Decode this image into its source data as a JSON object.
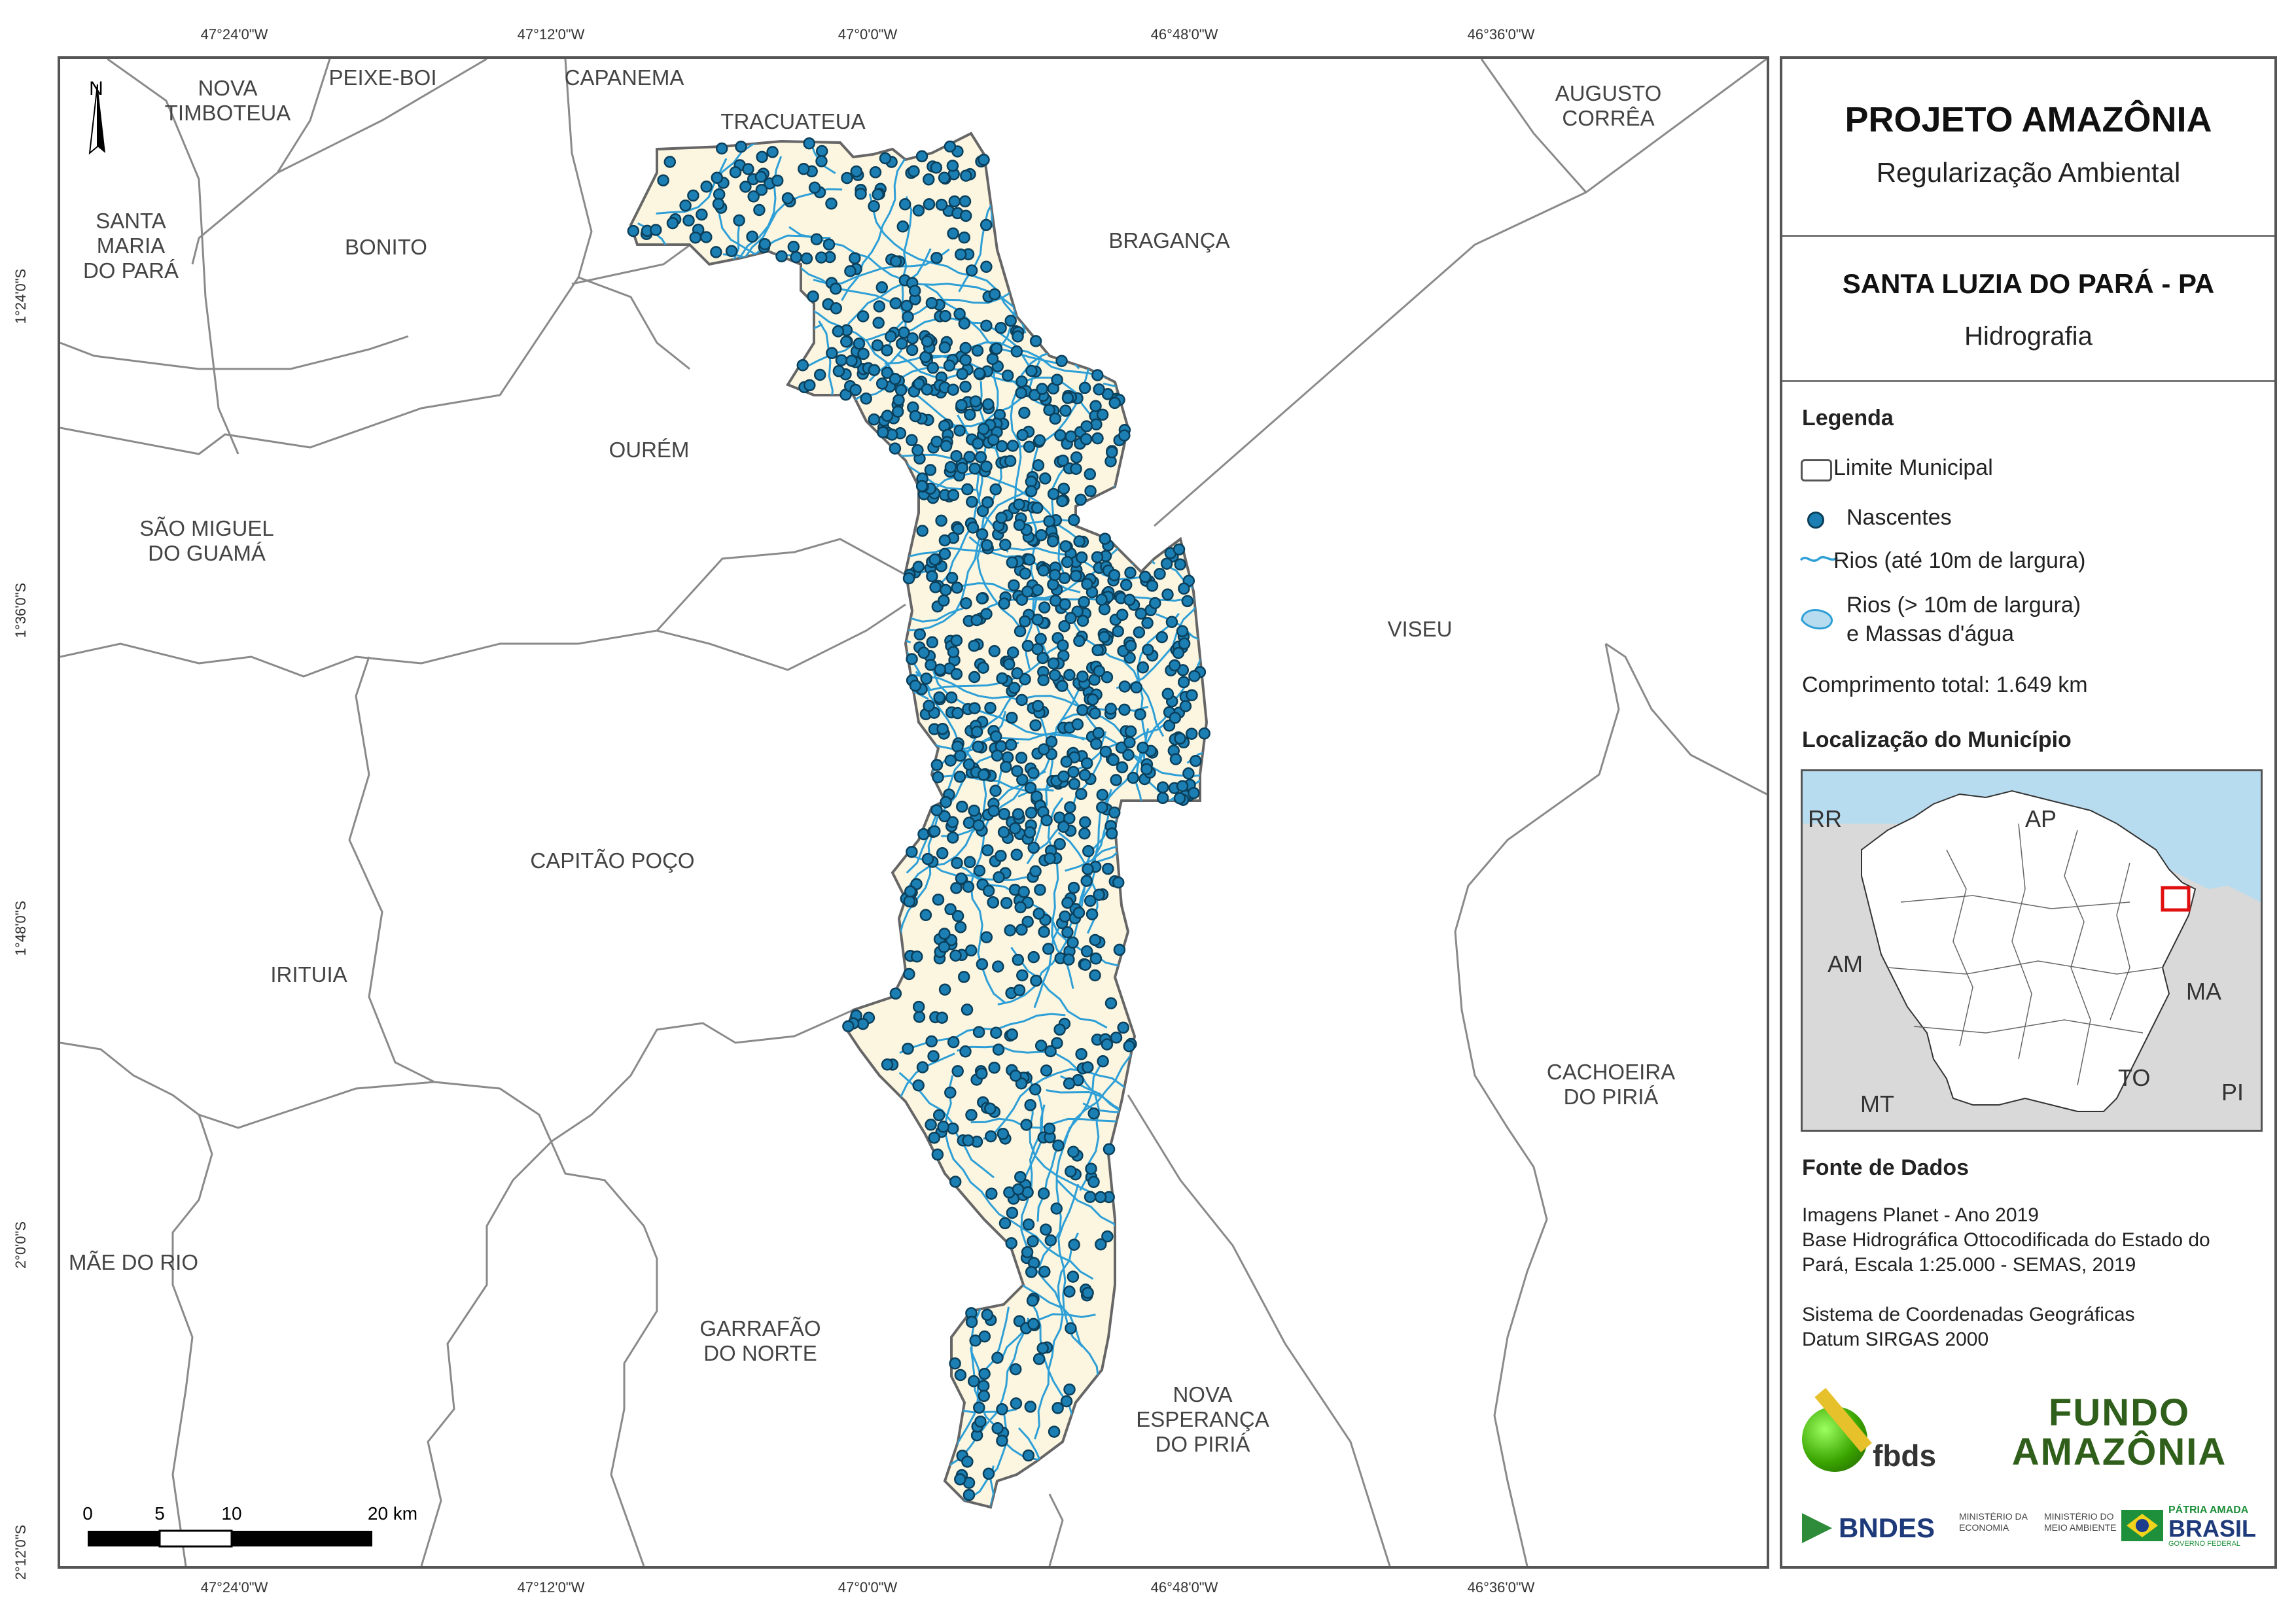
{
  "coordinates": {
    "top": [
      "47°24'0\"W",
      "47°12'0\"W",
      "47°0'0\"W",
      "46°48'0\"W",
      "46°36'0\"W"
    ],
    "bottom": [
      "47°24'0\"W",
      "47°12'0\"W",
      "47°0'0\"W",
      "46°48'0\"W",
      "46°36'0\"W"
    ],
    "left": [
      "1°24'0\"S",
      "1°36'0\"S",
      "1°48'0\"S",
      "2°0'0\"S",
      "2°12'0\"S"
    ]
  },
  "north_arrow": "N",
  "municipalities": {
    "nova_timboteua": "NOVA\nTIMBOTEUA",
    "peixe_boi": "PEIXE-BOI",
    "capanema": "CAPANEMA",
    "tracuateua": "TRACUATEUA",
    "augusto_correa": "AUGUSTO\nCORRÊA",
    "santa_maria": "SANTA\nMARIA\nDO PARÁ",
    "bonito": "BONITO",
    "braganca": "BRAGANÇA",
    "ourem": "OURÉM",
    "sao_miguel": "SÃO MIGUEL\nDO GUAMÁ",
    "viseu": "VISEU",
    "capitao_poco": "CAPITÃO POÇO",
    "irituia": "IRITUIA",
    "cachoeira": "CACHOEIRA\nDO PIRIÁ",
    "mae_do_rio": "MÃE DO RIO",
    "garrafao": "GARRAFÃO\nDO NORTE",
    "nova_esperanca": "NOVA\nESPERANÇA\nDO PIRIÁ"
  },
  "scale_bar": {
    "labels": [
      "0",
      "5",
      "10",
      "20 km"
    ]
  },
  "panel": {
    "project_title": "PROJETO AMAZÔNIA",
    "project_subtitle": "Regularização Ambiental",
    "municipality_title": "SANTA LUZIA DO PARÁ - PA",
    "theme": "Hidrografia",
    "legend_heading": "Legenda",
    "legend": {
      "limite": "Limite Municipal",
      "nascentes": "Nascentes",
      "rios": "Rios (até 10m de largura)",
      "massas_line1": "Rios (> 10m de largura)",
      "massas_line2": "e Massas d'água"
    },
    "total_length": "Comprimento total:  1.649 km",
    "location_heading": "Localização do Município",
    "inset_labels": {
      "rr": "RR",
      "ap": "AP",
      "am": "AM",
      "ma": "MA",
      "to": "TO",
      "mt": "MT",
      "pi": "PI"
    },
    "sources_heading": "Fonte de Dados",
    "sources": [
      "Imagens Planet - Ano 2019",
      "Base Hidrográfica Ottocodificada do Estado do",
      "Pará, Escala 1:25.000 - SEMAS, 2019",
      "",
      "Sistema de Coordenadas Geográficas",
      "Datum SIRGAS 2000"
    ],
    "logos": {
      "fbds": "fbds",
      "fundo_line1": "FUNDO",
      "fundo_line2": "AMAZÔNIA",
      "bndes": "BNDES",
      "min_economia": "MINISTÉRIO DA\nECONOMIA",
      "min_meio": "MINISTÉRIO DO\nMEIO AMBIENTE",
      "patria": "PÁTRIA AMADA",
      "brasil": "BRASIL",
      "governo": "GOVERNO FEDERAL"
    }
  },
  "colors": {
    "municipality_fill": "#fcf6e1",
    "river": "#2e9fd6",
    "spring": "#1b7fb4",
    "spring_outline": "#0b3f5a",
    "boundary": "#666666",
    "ocean": "#b8dcef",
    "inset_gray": "#d9d9d9",
    "highlight": "#e01010"
  }
}
